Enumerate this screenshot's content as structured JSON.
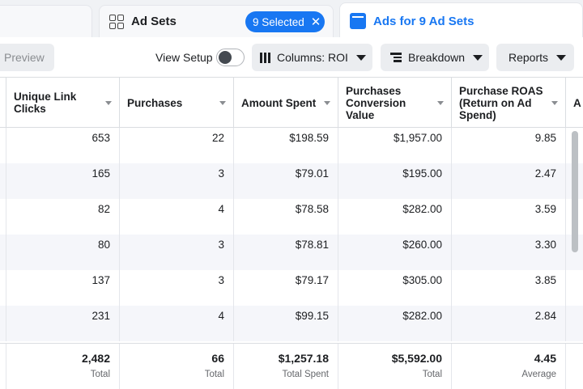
{
  "tabs": {
    "adsets_label": "Ad Sets",
    "selected_label": "9 Selected",
    "close_glyph": "✕",
    "ads_label": "Ads for 9 Ad Sets"
  },
  "toolbar": {
    "preview_label": "Preview",
    "view_setup_label": "View Setup",
    "columns_label": "Columns: ROI",
    "breakdown_label": "Breakdown",
    "reports_label": "Reports"
  },
  "table": {
    "columns": [
      "Unique Link Clicks",
      "Purchases",
      "Amount Spent",
      "Purchases Conversion Value",
      "Purchase ROAS (Return on Ad Spend)"
    ],
    "edge_header_fragment": "A",
    "rows": [
      [
        "653",
        "22",
        "$198.59",
        "$1,957.00",
        "9.85"
      ],
      [
        "165",
        "3",
        "$79.01",
        "$195.00",
        "2.47"
      ],
      [
        "82",
        "4",
        "$78.58",
        "$282.00",
        "3.59"
      ],
      [
        "80",
        "3",
        "$78.81",
        "$260.00",
        "3.30"
      ],
      [
        "137",
        "3",
        "$79.17",
        "$305.00",
        "3.85"
      ],
      [
        "231",
        "4",
        "$99.15",
        "$282.00",
        "2.84"
      ]
    ],
    "totals": [
      {
        "value": "2,482",
        "label": "Total"
      },
      {
        "value": "66",
        "label": "Total"
      },
      {
        "value": "$1,257.18",
        "label": "Total Spent"
      },
      {
        "value": "$5,592.00",
        "label": "Total"
      },
      {
        "value": "4.45",
        "label": "Average"
      }
    ]
  },
  "colors": {
    "accent": "#1877f2",
    "alt_row": "#f5f6fa",
    "border": "#dadde1"
  }
}
